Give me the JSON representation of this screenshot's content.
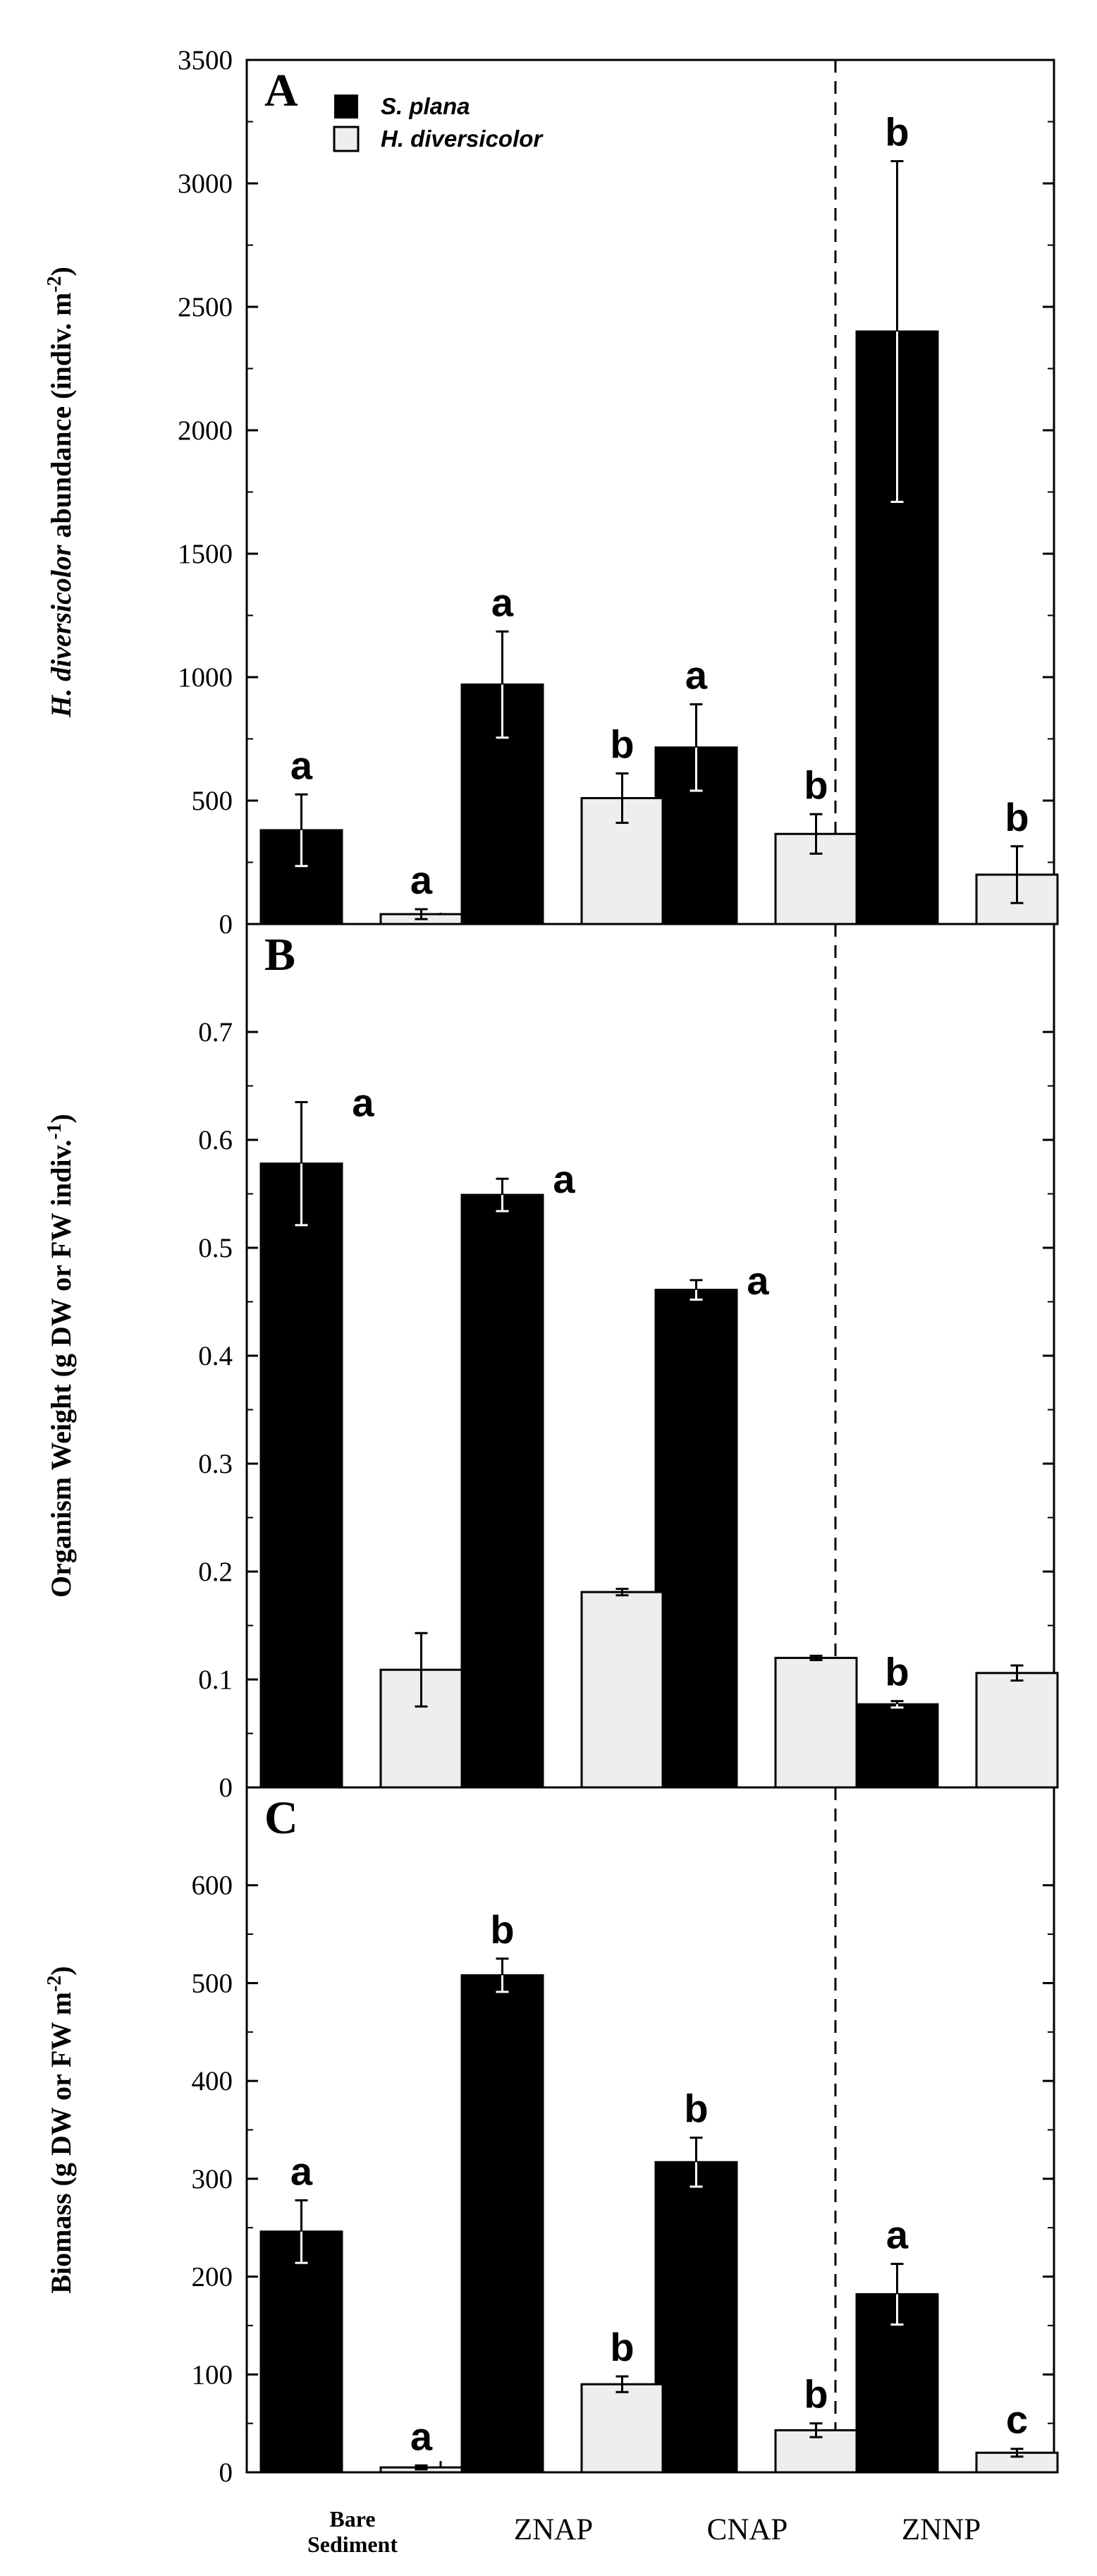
{
  "chart_data": [
    {
      "panel": "A",
      "type": "bar",
      "ylabel_italic": "H. diversicolor",
      "ylabel_rest": " abundance (indiv. m",
      "ylabel_sup": "-2",
      "ylabel_end": ")",
      "ylim": [
        0,
        3500
      ],
      "yticks": [
        0,
        500,
        1000,
        1500,
        2000,
        2500,
        3000,
        3500
      ],
      "ytick_labels": [
        "0",
        "500",
        "1000",
        "1500",
        "2000",
        "2500",
        "3000",
        "3500"
      ],
      "categories": [
        "Bare Sediment",
        "ZNAP",
        "CNAP",
        "ZNNP"
      ],
      "series": [
        {
          "name": "S. plana",
          "color": "#000000",
          "values": [
            380,
            970,
            715,
            2400
          ],
          "errors": [
            145,
            215,
            175,
            690
          ],
          "letters": [
            "a",
            "a",
            "a",
            "b"
          ]
        },
        {
          "name": "H. diversicolor",
          "color": "#eeeeee",
          "values": [
            40,
            510,
            365,
            200
          ],
          "errors": [
            20,
            100,
            80,
            115
          ],
          "letters": [
            "a",
            "b",
            "b",
            "b"
          ]
        }
      ]
    },
    {
      "panel": "B",
      "type": "bar",
      "ylabel_rest": "Organism Weight (g DW or FW indiv.",
      "ylabel_sup": "-1",
      "ylabel_end": ")",
      "ylim": [
        0,
        0.8
      ],
      "yticks": [
        0,
        0.1,
        0.2,
        0.3,
        0.4,
        0.5,
        0.6,
        0.7
      ],
      "ytick_labels": [
        "0",
        "0.1",
        "0.2",
        "0.3",
        "0.4",
        "0.5",
        "0.6",
        "0.7"
      ],
      "categories": [
        "Bare Sediment",
        "ZNAP",
        "CNAP",
        "ZNNP"
      ],
      "series": [
        {
          "name": "S. plana",
          "color": "#000000",
          "values": [
            0.578,
            0.549,
            0.461,
            0.077
          ],
          "errors": [
            0.057,
            0.015,
            0.009,
            0.003
          ],
          "letters": [
            "a",
            "a",
            "a",
            "b"
          ]
        },
        {
          "name": "H. diversicolor",
          "color": "#eeeeee",
          "values": [
            0.109,
            0.181,
            0.12,
            0.106
          ],
          "errors": [
            0.034,
            0.003,
            0.002,
            0.007
          ],
          "letters": [
            "",
            "",
            "",
            ""
          ]
        }
      ]
    },
    {
      "panel": "C",
      "type": "bar",
      "ylabel_rest": "Biomass (g DW or FW m",
      "ylabel_sup": "-2",
      "ylabel_end": ")",
      "ylim": [
        0,
        700
      ],
      "yticks": [
        0,
        100,
        200,
        300,
        400,
        500,
        600
      ],
      "ytick_labels": [
        "0",
        "100",
        "200",
        "300",
        "400",
        "500",
        "600"
      ],
      "categories": [
        "Bare Sediment",
        "ZNAP",
        "CNAP",
        "ZNNP"
      ],
      "series": [
        {
          "name": "S. plana",
          "color": "#000000",
          "values": [
            246,
            508,
            317,
            182
          ],
          "errors": [
            32,
            17,
            25,
            31
          ],
          "letters": [
            "a",
            "b",
            "b",
            "a"
          ]
        },
        {
          "name": "H. diversicolor",
          "color": "#eeeeee",
          "values": [
            5,
            90,
            43,
            20
          ],
          "errors": [
            2,
            8,
            7,
            4
          ],
          "letters": [
            "a",
            "b",
            "b",
            "c"
          ]
        }
      ]
    }
  ],
  "x_category_labels": {
    "bare_line1": "Bare",
    "bare_line2": "Sediment",
    "znap": "ZNAP",
    "cnap": "CNAP",
    "znnp": "ZNNP"
  },
  "legend": {
    "s_plana": "S. plana",
    "h_diversicolor": "H. diversicolor"
  }
}
